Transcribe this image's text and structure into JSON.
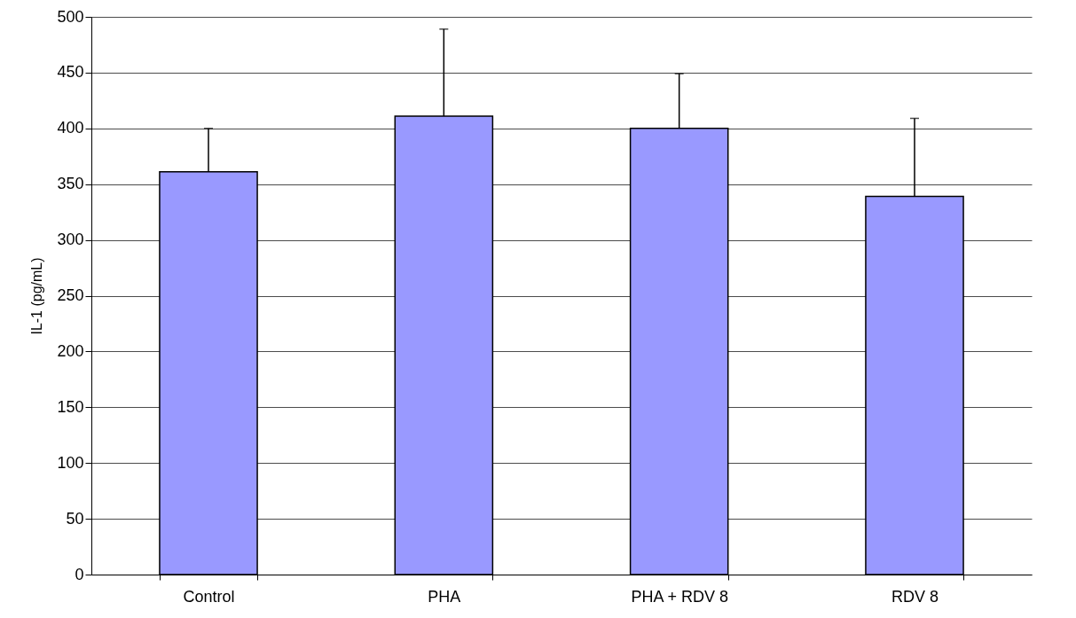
{
  "chart_data": {
    "type": "bar",
    "ylabel": "IL-1 (pg/mL)",
    "categories": [
      "Control",
      "PHA",
      "PHA + RDV 8",
      "RDV 8"
    ],
    "values": [
      361,
      411,
      400,
      339
    ],
    "errors": [
      39,
      78,
      49,
      70
    ],
    "color": "#9999ff",
    "ylim": [
      0,
      500
    ],
    "yticks": [
      0,
      50,
      100,
      150,
      200,
      250,
      300,
      350,
      400,
      450,
      500
    ],
    "grid": "y"
  }
}
